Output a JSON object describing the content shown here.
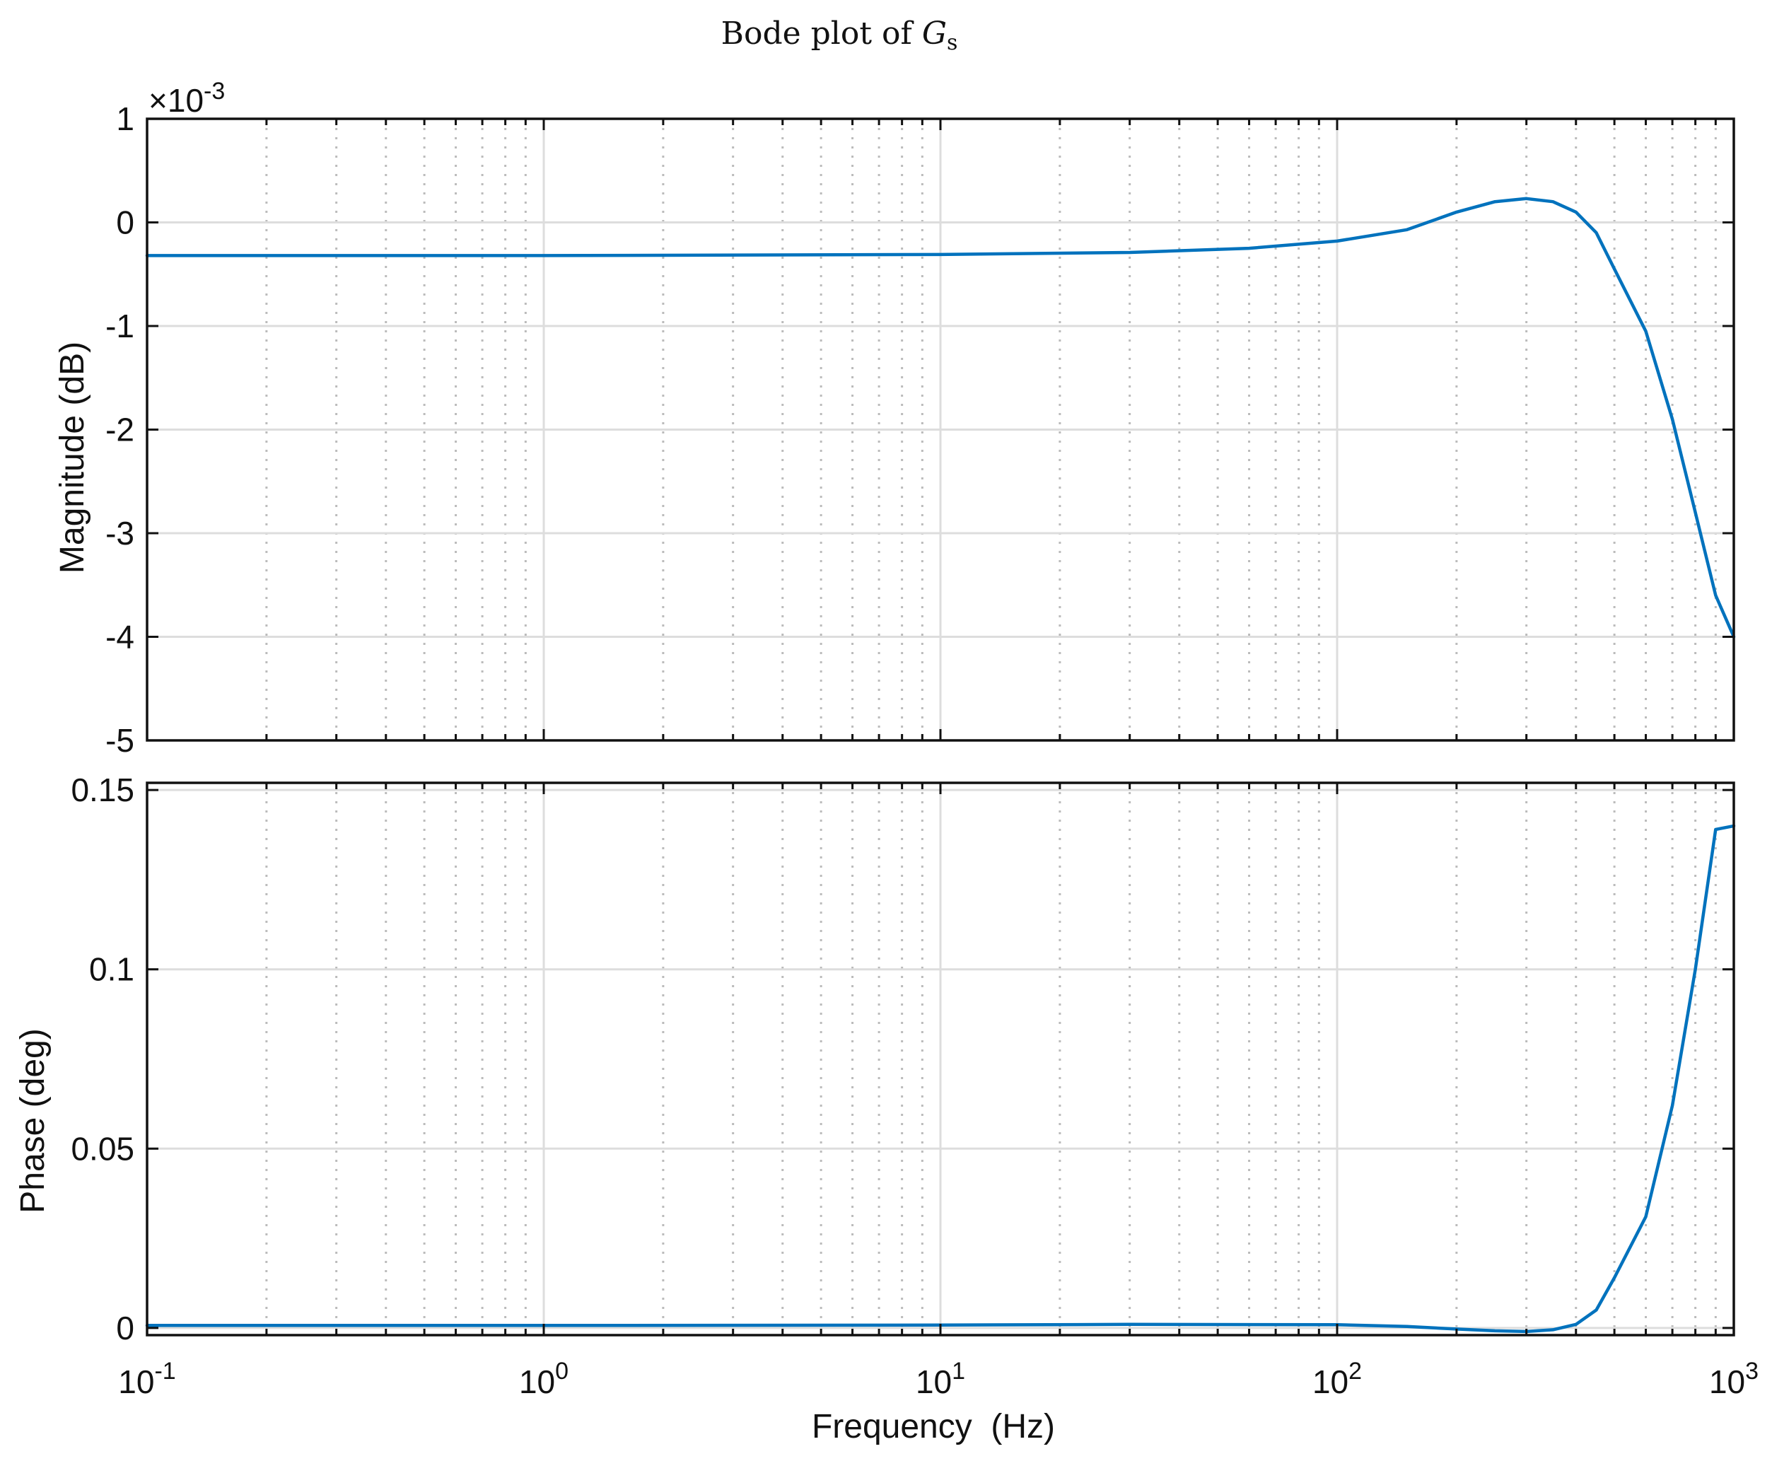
{
  "title": {
    "prefix": "Bode plot of ",
    "symbol": "G",
    "subscript": "s"
  },
  "colors": {
    "line": "#0072BD",
    "grid_major": "#dddddd",
    "grid_minor": "#bbbbbb",
    "axes": "#111111"
  },
  "chart_data": [
    {
      "type": "line",
      "panel": "magnitude",
      "ylabel": "Magnitude (dB)",
      "xlabel": "",
      "xscale": "log",
      "xlim": [
        0.1,
        1000
      ],
      "ylim": [
        -5,
        1
      ],
      "exponent_label": {
        "base": "×10",
        "power": "-3"
      },
      "yticks": [
        {
          "value": 1,
          "label": "1"
        },
        {
          "value": 0,
          "label": "0"
        },
        {
          "value": -1,
          "label": "-1"
        },
        {
          "value": -2,
          "label": "-2"
        },
        {
          "value": -3,
          "label": "-3"
        },
        {
          "value": -4,
          "label": "-4"
        },
        {
          "value": -5,
          "label": "-5"
        }
      ],
      "grid": true,
      "series": [
        {
          "x": [
            0.1,
            1,
            10,
            30,
            60,
            100,
            150,
            200,
            250,
            300,
            350,
            400,
            450,
            500,
            600,
            700,
            800,
            900,
            1000
          ],
          "y": [
            -0.32,
            -0.32,
            -0.31,
            -0.29,
            -0.25,
            -0.18,
            -0.07,
            0.1,
            0.2,
            0.23,
            0.2,
            0.1,
            -0.1,
            -0.45,
            -1.05,
            -1.9,
            -2.8,
            -3.6,
            -4.0
          ]
        }
      ]
    },
    {
      "type": "line",
      "panel": "phase",
      "ylabel": "Phase (deg)",
      "xlabel": "Frequency  (Hz)",
      "xscale": "log",
      "xlim": [
        0.1,
        1000
      ],
      "ylim": [
        -0.002,
        0.152
      ],
      "xticks": [
        {
          "value": 0.1,
          "base": "10",
          "exp": "-1"
        },
        {
          "value": 1,
          "base": "10",
          "exp": "0"
        },
        {
          "value": 10,
          "base": "10",
          "exp": "1"
        },
        {
          "value": 100,
          "base": "10",
          "exp": "2"
        },
        {
          "value": 1000,
          "base": "10",
          "exp": "3"
        }
      ],
      "yticks": [
        {
          "value": 0.15,
          "label": "0.15"
        },
        {
          "value": 0.1,
          "label": "0.1"
        },
        {
          "value": 0.05,
          "label": "0.05"
        },
        {
          "value": 0,
          "label": "0"
        }
      ],
      "grid": true,
      "series": [
        {
          "x": [
            0.1,
            1,
            10,
            30,
            100,
            150,
            200,
            250,
            300,
            350,
            400,
            450,
            500,
            600,
            700,
            800,
            900,
            1000
          ],
          "y": [
            0.0007,
            0.0007,
            0.0008,
            0.001,
            0.0009,
            0.0004,
            -0.0003,
            -0.0008,
            -0.001,
            -0.0005,
            0.001,
            0.005,
            0.014,
            0.031,
            0.062,
            0.1,
            0.139,
            0.14
          ]
        }
      ]
    }
  ]
}
